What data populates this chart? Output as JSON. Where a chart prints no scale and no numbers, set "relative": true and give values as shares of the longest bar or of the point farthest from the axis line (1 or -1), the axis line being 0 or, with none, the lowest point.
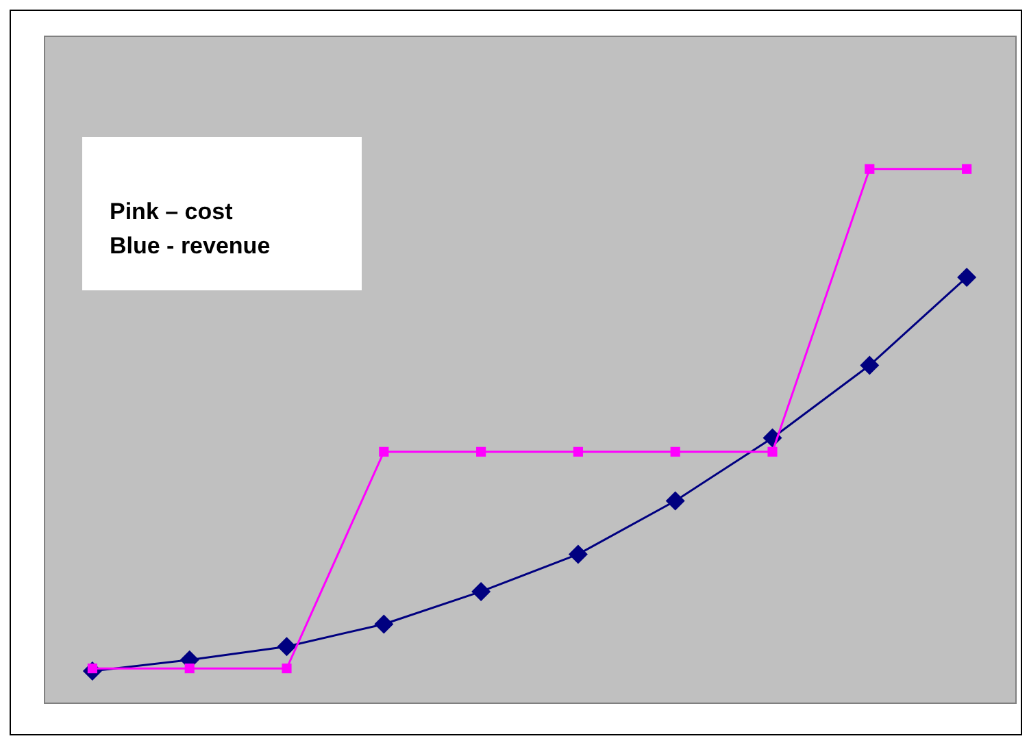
{
  "chart_data": {
    "type": "line",
    "relative": true,
    "categories": [
      null,
      null,
      null,
      null,
      null,
      null,
      null,
      null,
      null,
      null
    ],
    "series": [
      {
        "color": "#ff00ff",
        "marker": "square",
        "values": [
          0.064,
          0.064,
          0.064,
          0.47,
          0.47,
          0.47,
          0.47,
          0.47,
          1,
          1
        ]
      },
      {
        "color": "#000080",
        "marker": "diamond",
        "values": [
          0.059,
          0.08,
          0.105,
          0.147,
          0.208,
          0.278,
          0.378,
          0.496,
          0.632,
          0.797
        ]
      }
    ],
    "annotations": [
      "Pink – cost",
      "Blue - revenue"
    ],
    "grid": false,
    "legend": false
  }
}
